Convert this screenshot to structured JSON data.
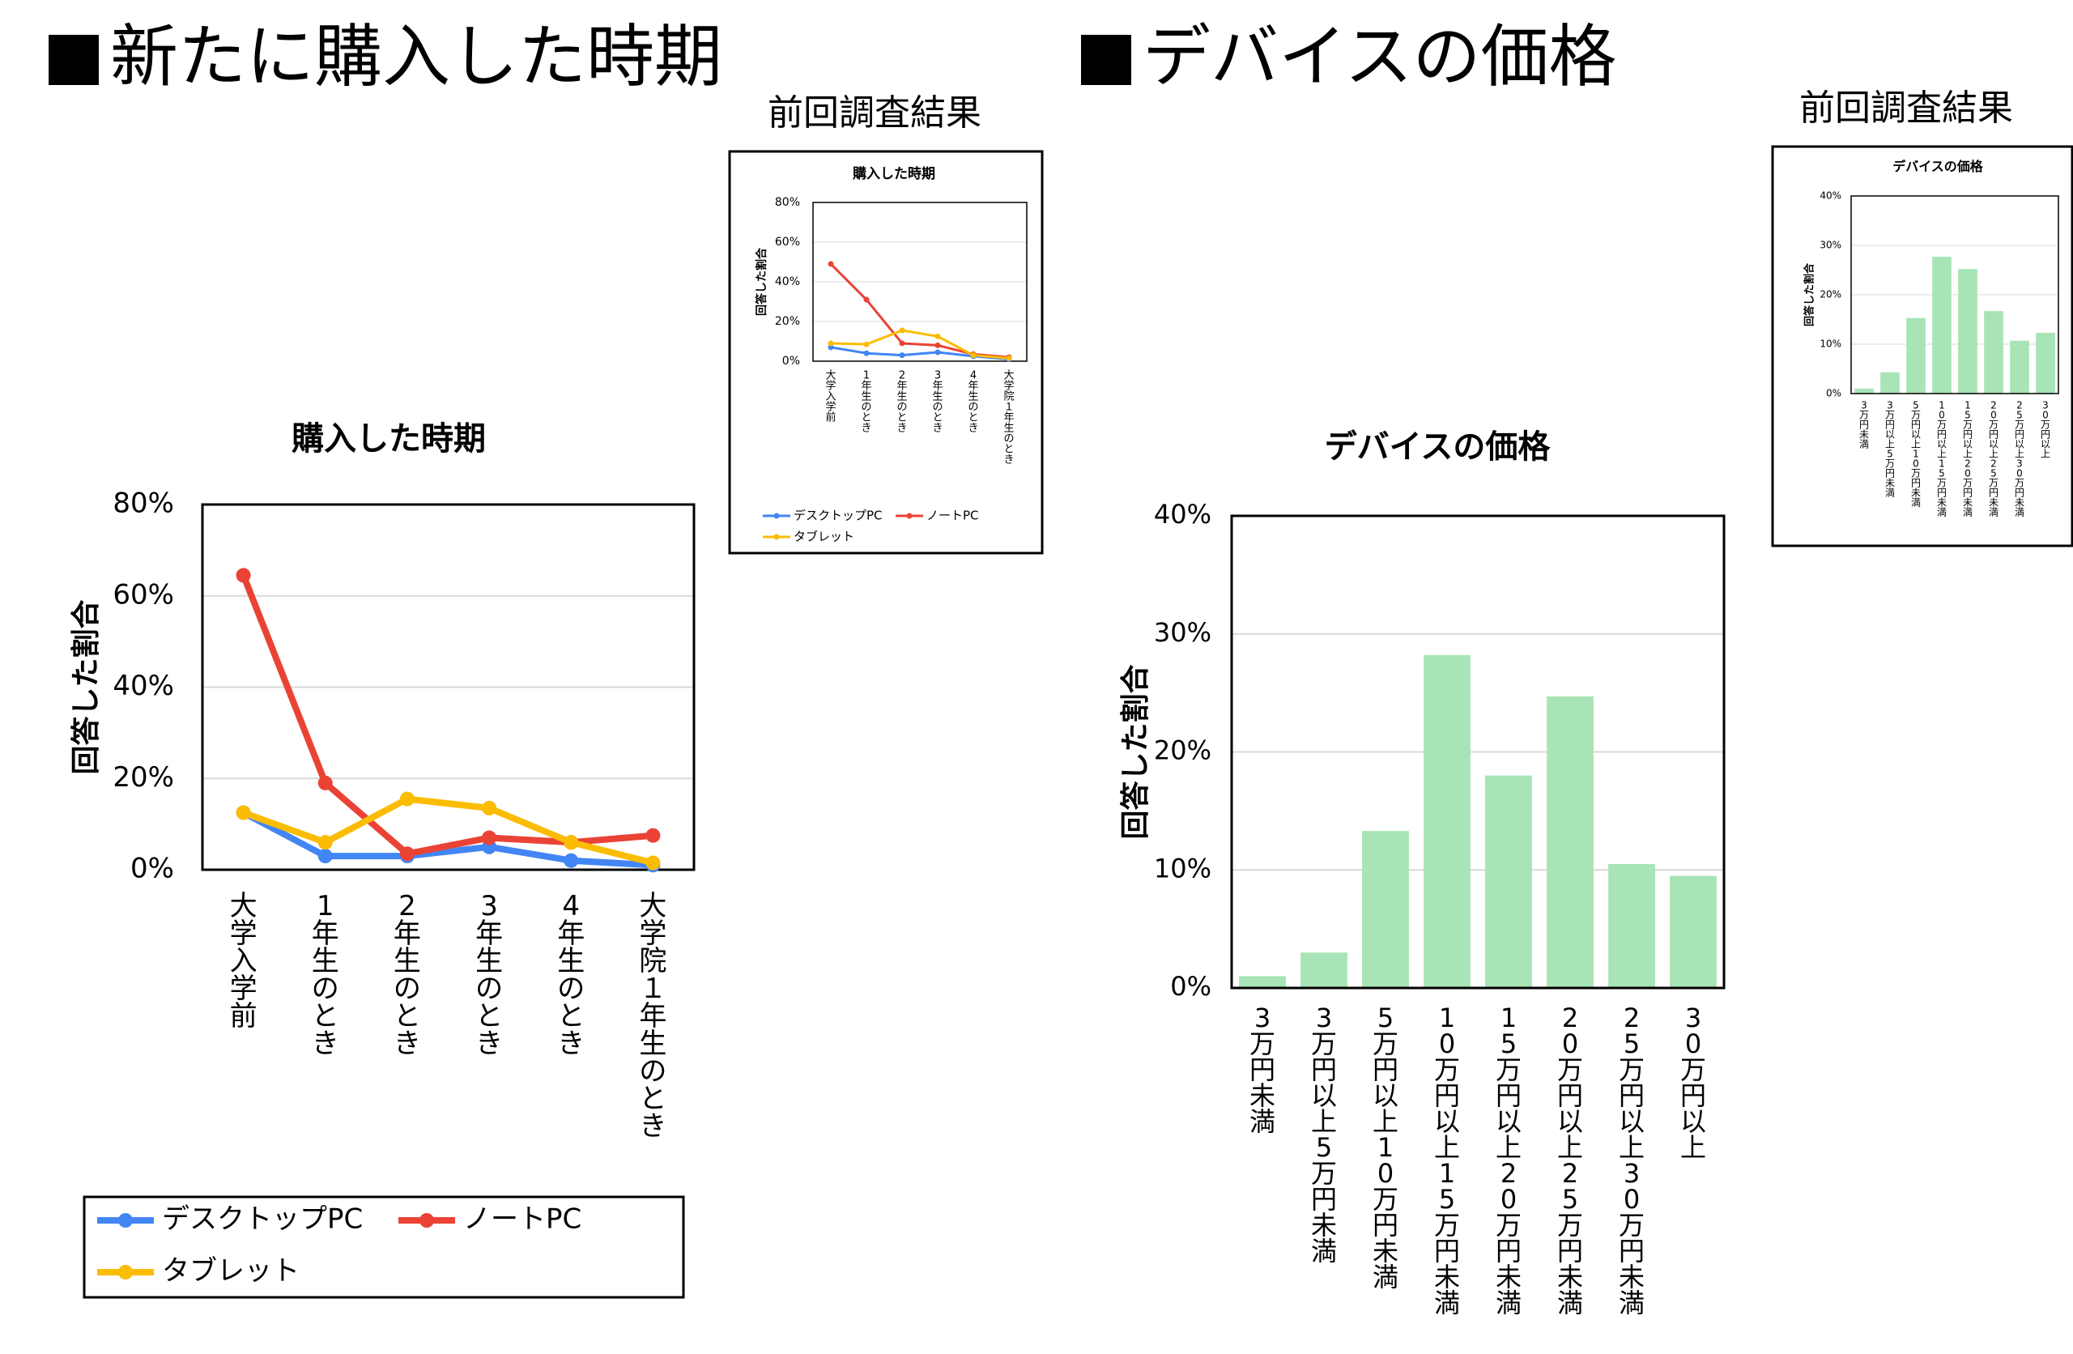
{
  "left_heading": "新たに購入した時期",
  "right_heading": "デバイスの価格",
  "previous_label": "前回調査結果",
  "colors": {
    "desktop": "#4285f4",
    "laptop": "#ea4335",
    "tablet": "#fbbc04",
    "bar": "#a8e4b6",
    "grid": "#d9d9d9"
  },
  "chart_data": [
    {
      "id": "purchase-main",
      "type": "line",
      "title": "購入した時期",
      "ylabel": "回答した割合",
      "xlabel": "",
      "categories": [
        "大学入学前",
        "1年生のとき",
        "2年生のとき",
        "3年生のとき",
        "4年生のとき",
        "大学院１年生のとき"
      ],
      "ylim": [
        0,
        80
      ],
      "yticks": [
        "0%",
        "20%",
        "40%",
        "60%",
        "80%"
      ],
      "grid": true,
      "legend_position": "bottom",
      "series": [
        {
          "name": "デスクトップPC",
          "color": "#4285f4",
          "values": [
            12.5,
            3,
            3,
            5,
            2,
            1
          ]
        },
        {
          "name": "ノートPC",
          "color": "#ea4335",
          "values": [
            64.5,
            19,
            3.5,
            7,
            6,
            7.5
          ]
        },
        {
          "name": "タブレット",
          "color": "#fbbc04",
          "values": [
            12.5,
            6,
            15.5,
            13.5,
            6,
            1.5
          ]
        }
      ]
    },
    {
      "id": "purchase-previous",
      "type": "line",
      "title": "購入した時期",
      "ylabel": "回答した割合",
      "xlabel": "",
      "categories": [
        "大学入学前",
        "1年生のとき",
        "2年生のとき",
        "3年生のとき",
        "4年生のとき",
        "大学院１年生のとき"
      ],
      "ylim": [
        0,
        80
      ],
      "yticks": [
        "0%",
        "20%",
        "40%",
        "60%",
        "80%"
      ],
      "grid": true,
      "legend_position": "bottom",
      "series": [
        {
          "name": "デスクトップPC",
          "color": "#4285f4",
          "values": [
            7,
            4,
            3,
            4.5,
            2.5,
            1
          ]
        },
        {
          "name": "ノートPC",
          "color": "#ea4335",
          "values": [
            49,
            31,
            9,
            8,
            3.5,
            2
          ]
        },
        {
          "name": "タブレット",
          "color": "#fbbc04",
          "values": [
            9,
            8.5,
            15.5,
            12.5,
            3,
            1.5
          ]
        }
      ]
    },
    {
      "id": "price-main",
      "type": "bar",
      "title": "デバイスの価格",
      "ylabel": "回答した割合",
      "xlabel": "",
      "categories": [
        "3万円未満",
        "3万円以上5万円未満",
        "5万円以上10万円未満",
        "10万円以上15万円未満",
        "15万円以上20万円未満",
        "20万円以上25万円未満",
        "25万円以上30万円未満",
        "30万円以上"
      ],
      "values": [
        1,
        3,
        13.3,
        28.2,
        18,
        24.7,
        10.5,
        9.5
      ],
      "ylim": [
        0,
        40
      ],
      "yticks": [
        "0%",
        "10%",
        "20%",
        "30%",
        "40%"
      ],
      "grid": true
    },
    {
      "id": "price-previous",
      "type": "bar",
      "title": "デバイスの価格",
      "ylabel": "回答した割合",
      "xlabel": "",
      "categories": [
        "3万円未満",
        "3万円以上5万円未満",
        "5万円以上10万円未満",
        "10万円以上15万円未満",
        "15万円以上20万円未満",
        "20万円以上25万円未満",
        "25万円以上30万円未満",
        "30万円以上"
      ],
      "values": [
        1,
        4.3,
        15.3,
        27.7,
        25.2,
        16.7,
        10.7,
        12.3
      ],
      "ylim": [
        0,
        40
      ],
      "yticks": [
        "0%",
        "10%",
        "20%",
        "30%",
        "40%"
      ],
      "grid": true
    }
  ]
}
